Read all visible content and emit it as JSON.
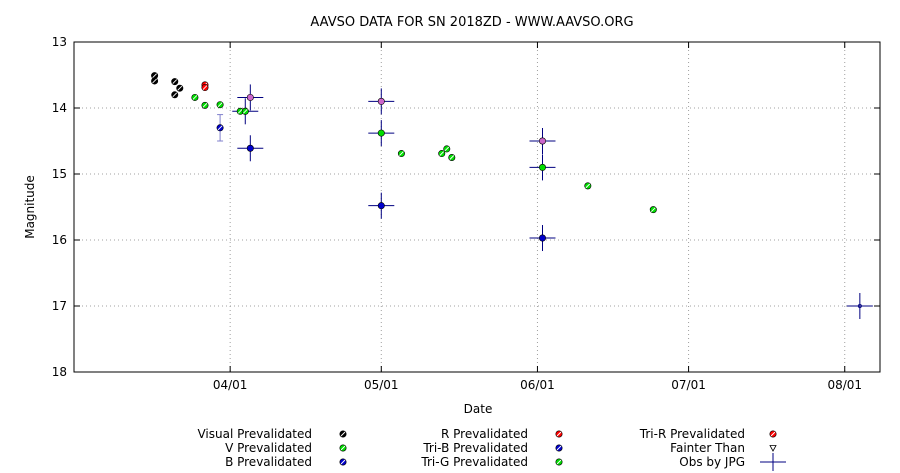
{
  "chart_data": {
    "type": "scatter",
    "title": "AAVSO DATA FOR SN 2018ZD - WWW.AAVSO.ORG",
    "xlabel": "Date",
    "ylabel": "Magnitude",
    "x_unit": "date (2018)",
    "xlim": [
      "2018-03-01",
      "2018-08-08"
    ],
    "ylim": [
      13,
      18
    ],
    "y_inverted": true,
    "grid": true,
    "x_ticks": [
      {
        "date": "2018-04-01",
        "label": "04/01"
      },
      {
        "date": "2018-05-01",
        "label": "05/01"
      },
      {
        "date": "2018-06-01",
        "label": "06/01"
      },
      {
        "date": "2018-07-01",
        "label": "07/01"
      },
      {
        "date": "2018-08-01",
        "label": "08/01"
      }
    ],
    "y_ticks": [
      13,
      14,
      15,
      16,
      17,
      18
    ],
    "legend_placement": "bottom",
    "legend": [
      {
        "label": "Visual Prevalidated",
        "symbol": "circle",
        "color": "#000000"
      },
      {
        "label": "V Prevalidated",
        "symbol": "circle",
        "color": "#00dd00"
      },
      {
        "label": "B Prevalidated",
        "symbol": "circle",
        "color": "#0000cc"
      },
      {
        "label": "R Prevalidated",
        "symbol": "circle",
        "color": "#ff0000"
      },
      {
        "label": "Tri-B Prevalidated",
        "symbol": "circle",
        "color": "#0000cc"
      },
      {
        "label": "Tri-G Prevalidated",
        "symbol": "circle",
        "color": "#00dd00"
      },
      {
        "label": "Tri-R Prevalidated",
        "symbol": "circle",
        "color": "#ff0000"
      },
      {
        "label": "Fainter Than",
        "symbol": "triangle-down",
        "color": "#000000"
      },
      {
        "label": "Obs by JPG",
        "symbol": "cross",
        "color": "#000080"
      }
    ],
    "series": [
      {
        "name": "Visual Prevalidated",
        "color": "#000000",
        "points": [
          {
            "x": "2018-03-17",
            "y": 13.51
          },
          {
            "x": "2018-03-17",
            "y": 13.59
          },
          {
            "x": "2018-03-21",
            "y": 13.6
          },
          {
            "x": "2018-03-22",
            "y": 13.7
          },
          {
            "x": "2018-03-21",
            "y": 13.8
          }
        ]
      },
      {
        "name": "V Prevalidated",
        "color": "#00dd00",
        "points": [
          {
            "x": "2018-03-25",
            "y": 13.84
          },
          {
            "x": "2018-03-27",
            "y": 13.96
          },
          {
            "x": "2018-03-30",
            "y": 13.95
          },
          {
            "x": "2018-04-03",
            "y": 14.05
          },
          {
            "x": "2018-04-04",
            "y": 14.05
          }
        ]
      },
      {
        "name": "R Prevalidated",
        "color": "#ff0000",
        "points": [
          {
            "x": "2018-03-27",
            "y": 13.65
          },
          {
            "x": "2018-03-27",
            "y": 13.69
          }
        ]
      },
      {
        "name": "B Prevalidated",
        "color": "#0000cc",
        "points": [
          {
            "x": "2018-03-30",
            "y": 14.3,
            "err": 0.2
          }
        ]
      },
      {
        "name": "Tri-G Prevalidated",
        "color": "#00dd00",
        "points": [
          {
            "x": "2018-05-05",
            "y": 14.69
          },
          {
            "x": "2018-05-13",
            "y": 14.69
          },
          {
            "x": "2018-05-14",
            "y": 14.62
          },
          {
            "x": "2018-05-15",
            "y": 14.75
          },
          {
            "x": "2018-06-11",
            "y": 15.18
          },
          {
            "x": "2018-06-24",
            "y": 15.54
          }
        ]
      },
      {
        "name": "Obs by JPG",
        "color": "#000080",
        "points": [
          {
            "x": "2018-04-05",
            "y": 13.84,
            "band": "R",
            "fill": "#cc66cc"
          },
          {
            "x": "2018-04-04",
            "y": 14.05,
            "band": "V",
            "fill": "#00dd00"
          },
          {
            "x": "2018-04-05",
            "y": 14.61,
            "band": "B",
            "fill": "#0000cc"
          },
          {
            "x": "2018-05-01",
            "y": 13.9,
            "band": "R",
            "fill": "#cc66cc"
          },
          {
            "x": "2018-05-01",
            "y": 14.38,
            "band": "V",
            "fill": "#00dd00"
          },
          {
            "x": "2018-05-01",
            "y": 15.48,
            "band": "B",
            "fill": "#0000cc"
          },
          {
            "x": "2018-06-02",
            "y": 14.5,
            "band": "R",
            "fill": "#cc66cc"
          },
          {
            "x": "2018-06-02",
            "y": 14.9,
            "band": "V",
            "fill": "#00dd00"
          },
          {
            "x": "2018-06-02",
            "y": 15.97,
            "band": "B",
            "fill": "#0000cc"
          },
          {
            "x": "2018-08-04",
            "y": 17.0,
            "band": "Unfiltered",
            "fill": "#000080"
          }
        ]
      }
    ]
  }
}
